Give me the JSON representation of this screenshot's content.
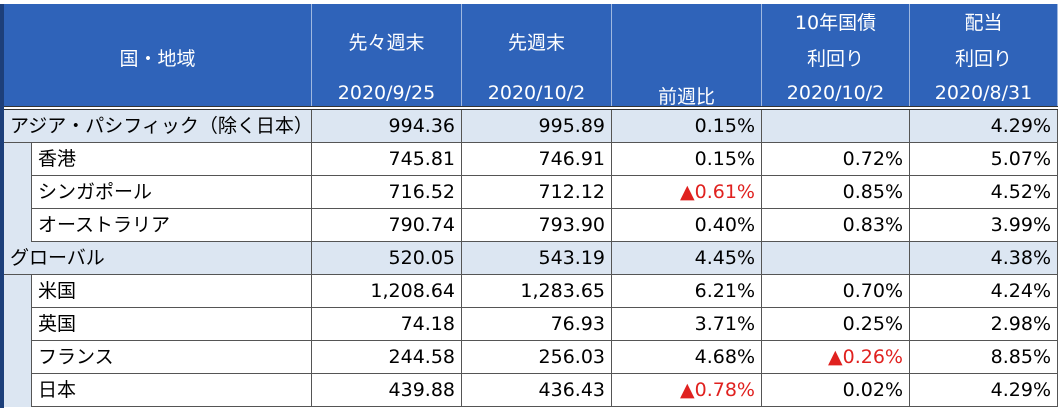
{
  "header": {
    "columns": [
      {
        "lines": [
          "国・地域"
        ]
      },
      {
        "lines": [
          "先々週末",
          "2020/9/25"
        ]
      },
      {
        "lines": [
          "先週末",
          "2020/10/2"
        ]
      },
      {
        "lines": [
          "前週比"
        ]
      },
      {
        "lines": [
          "10年国債",
          "利回り",
          "2020/10/2"
        ]
      },
      {
        "lines": [
          "配当",
          "利回り",
          "2020/8/31"
        ]
      }
    ]
  },
  "table": {
    "rows": [
      {
        "label": "アジア・パシフィック（除く日本）",
        "group": true,
        "cells": [
          "994.36",
          "995.89",
          "0.15%",
          null,
          "4.29%"
        ]
      },
      {
        "label": "香港",
        "group": false,
        "cells": [
          "745.81",
          "746.91",
          "0.15%",
          "0.72%",
          "5.07%"
        ]
      },
      {
        "label": "シンガポール",
        "group": false,
        "cells": [
          "716.52",
          "712.12",
          "▲0.61%",
          "0.85%",
          "4.52%"
        ]
      },
      {
        "label": "オーストラリア",
        "group": false,
        "cells": [
          "790.74",
          "793.90",
          "0.40%",
          "0.83%",
          "3.99%"
        ]
      },
      {
        "label": "グローバル",
        "group": true,
        "cells": [
          "520.05",
          "543.19",
          "4.45%",
          null,
          "4.38%"
        ]
      },
      {
        "label": "米国",
        "group": false,
        "cells": [
          "1,208.64",
          "1,283.65",
          "6.21%",
          "0.70%",
          "4.24%"
        ]
      },
      {
        "label": "英国",
        "group": false,
        "cells": [
          "74.18",
          "76.93",
          "3.71%",
          "0.25%",
          "2.98%"
        ]
      },
      {
        "label": "フランス",
        "group": false,
        "cells": [
          "244.58",
          "256.03",
          "4.68%",
          "▲0.26%",
          "8.85%"
        ]
      },
      {
        "label": "日本",
        "group": false,
        "cells": [
          "439.88",
          "436.43",
          "▲0.78%",
          "0.02%",
          "4.29%"
        ]
      }
    ]
  }
}
